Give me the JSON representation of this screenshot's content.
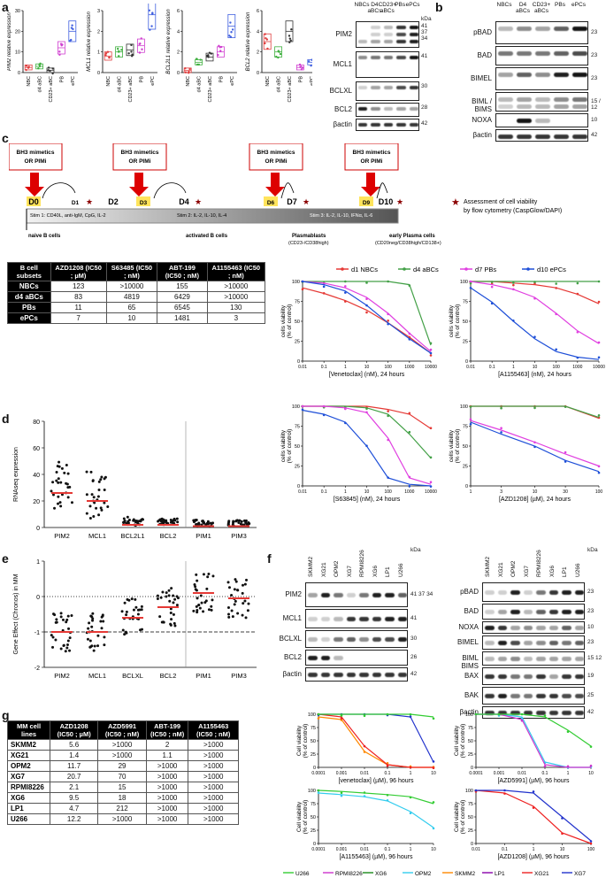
{
  "panels": {
    "a": "a",
    "b": "b",
    "c": "c",
    "d": "d",
    "e": "e",
    "f": "f",
    "g": "g"
  },
  "panel_a": {
    "mini_charts": [
      {
        "ylabel": "PIM2 relative expression",
        "ymax": "30",
        "ticks": [
          "0",
          "10",
          "20",
          "30"
        ],
        "cats": [
          "NBC",
          "d4 aBC",
          "CD23+ aBC",
          "PB",
          "ePC"
        ],
        "means": [
          2.5,
          3,
          1,
          12,
          20
        ],
        "color": [
          "#e04040",
          "#40b040",
          "#333",
          "#d040d0",
          "#4060e0"
        ]
      },
      {
        "ylabel": "MCL1 relative expression",
        "ymax": "3",
        "ticks": [
          "0",
          "1",
          "2",
          "3"
        ],
        "cats": [
          "NBC",
          "d4 aBC",
          "CD23+ aBC",
          "PB",
          "ePC"
        ],
        "means": [
          0.8,
          1,
          1.1,
          1.3,
          2.8
        ],
        "color": [
          "#e04040",
          "#40b040",
          "#333",
          "#d040d0",
          "#4060e0"
        ]
      },
      {
        "ylabel": "BCL2L1 relative expression",
        "ymax": "6",
        "ticks": [
          "0",
          "2",
          "4",
          "6"
        ],
        "cats": [
          "NBC",
          "d4 aBC",
          "CD23+ aBC",
          "PB",
          "ePC"
        ],
        "means": [
          0.2,
          1,
          1.5,
          2,
          4.5
        ],
        "color": [
          "#e04040",
          "#40b040",
          "#333",
          "#d040d0",
          "#4060e0"
        ]
      },
      {
        "ylabel": "BCL2 relative expression",
        "ymax": "6",
        "ticks": [
          "0",
          "2",
          "4",
          "6"
        ],
        "cats": [
          "NBC",
          "d4 aBC",
          "CD23+ aBC",
          "PB",
          "ePC"
        ],
        "means": [
          3,
          2,
          4,
          0.5,
          1
        ],
        "color": [
          "#e04040",
          "#40b040",
          "#333",
          "#d040d0",
          "#4060e0"
        ]
      }
    ],
    "blot_cols": [
      "NBCs",
      "D4 aBCs",
      "CD23+ aBCs",
      "PBs",
      "ePCs"
    ],
    "blot_rows": [
      {
        "label": "PIM2",
        "kda": [
          "41",
          "37",
          "34"
        ]
      },
      {
        "label": "MCL1",
        "kda": [
          "41"
        ]
      },
      {
        "label": "BCLXL",
        "kda": [
          "30"
        ]
      },
      {
        "label": "BCL2",
        "kda": [
          "28"
        ]
      },
      {
        "label": "βactin",
        "kda": [
          "42"
        ]
      }
    ],
    "kda_title": "kDa"
  },
  "panel_b": {
    "blot_cols": [
      "NBCs",
      "D4 aBCs",
      "CD23+ aBCs",
      "PBs",
      "ePCs"
    ],
    "rows": [
      {
        "label": "pBAD",
        "kda": "23"
      },
      {
        "label": "BAD",
        "kda": "23"
      },
      {
        "label": "BIMEL",
        "kda": "23"
      },
      {
        "label": "BIML / BIMS",
        "kda": "15 / 12"
      },
      {
        "label": "NOXA",
        "kda": "10"
      },
      {
        "label": "βactin",
        "kda": "42"
      }
    ]
  },
  "panel_c": {
    "boxes": [
      "BH3 mimetics OR PIMi",
      "BH3 mimetics OR PIMi",
      "BH3 mimetics OR PIMi",
      "BH3 mimetics OR PIMi"
    ],
    "days": [
      "D0",
      "D1",
      "D2",
      "D3",
      "D4",
      "D6",
      "D7",
      "D9",
      "D10"
    ],
    "stim1": "Stim 1: CD40L, anti-IgM, CpG, IL-2",
    "stim2": "Stim 2: IL-2, IL-10, IL-4",
    "stim3": "Stim 3: IL-2, IL-10, IFNα, IL-6",
    "stage_labels": [
      "naive B cells",
      "activated B cells",
      "Plasmablasts",
      "early Plasma cells"
    ],
    "stage_markers": [
      "(CD23-/CD38high)",
      "(CD20neg/CD38high/CD138+)"
    ],
    "legend": "Assessment of cell viability by flow cytometry (CaspGlow/DAPI)",
    "table": {
      "header": [
        "B cell subsets",
        "AZD1208 (IC50 ; µM)",
        "S63485 (IC50 ; nM)",
        "ABT-199 (IC50 ; nM)",
        "A1155463 (IC50 ; nM)"
      ],
      "rows": [
        [
          "NBCs",
          "123",
          ">10000",
          "155",
          ">10000"
        ],
        [
          "d4 aBCs",
          "83",
          "4819",
          "6429",
          ">10000"
        ],
        [
          "PBs",
          "11",
          "65",
          "6545",
          "130"
        ],
        [
          "ePCs",
          "7",
          "10",
          "1481",
          "3"
        ]
      ]
    },
    "legend_series": [
      "d1 NBCs",
      "d4 aBCs",
      "d7 PBs",
      "d10 ePCs"
    ],
    "legend_colors": [
      "#e53935",
      "#43a047",
      "#e040e0",
      "#1e4fd8"
    ],
    "curve_ylabel": "cells viability (% of control)",
    "curves_xlabels": [
      "[Venetoclax] (nM), 24 hours",
      "[A1155463] (nM), 24 hours",
      "[S63845] (nM), 24 hours",
      "[AZD1208] (µM), 24 hours"
    ]
  },
  "panel_d": {
    "ylabel": "RNAseq expression",
    "yticks": [
      "0",
      "20",
      "40",
      "60",
      "80"
    ],
    "cats": [
      "PIM2",
      "MCL1",
      "BCL2L1",
      "BCL2",
      "PIM1",
      "PIM3"
    ],
    "medians": [
      26,
      20,
      2,
      2,
      1,
      1
    ]
  },
  "panel_e": {
    "ylabel": "Gene Effect (Chronos) in MM",
    "yticks": [
      "1",
      "0",
      "-1",
      "-2"
    ],
    "cats": [
      "PIM2",
      "MCL1",
      "BCLXL",
      "BCL2",
      "PIM1",
      "PIM3"
    ],
    "medians": [
      -1.0,
      -1.0,
      -0.6,
      -0.3,
      0.1,
      -0.05
    ]
  },
  "panel_f": {
    "cols": [
      "SKMM2",
      "XG21",
      "OPM2",
      "XG7",
      "RPMI8226",
      "XG6",
      "LP1",
      "U266"
    ],
    "left_rows": [
      {
        "label": "PIM2",
        "kda": "41 37 34"
      },
      {
        "label": "MCL1",
        "kda": "41"
      },
      {
        "label": "BCLXL",
        "kda": "30"
      },
      {
        "label": "BCL2",
        "kda": "26"
      },
      {
        "label": "βactin",
        "kda": "42"
      }
    ],
    "right_rows": [
      {
        "label": "pBAD",
        "kda": "23"
      },
      {
        "label": "BAD",
        "kda": "23"
      },
      {
        "label": "NOXA",
        "kda": "10"
      },
      {
        "label": "BIMEL",
        "kda": "23"
      },
      {
        "label": "BIML BIMS",
        "kda": "15 12"
      },
      {
        "label": "BAX",
        "kda": "19"
      },
      {
        "label": "BAK",
        "kda": "25"
      },
      {
        "label": "βactin",
        "kda": "42"
      }
    ],
    "kda": "kDa"
  },
  "panel_g": {
    "table": {
      "header": [
        "MM cell lines",
        "AZD1208 (IC50 ; µM)",
        "AZD5991 (IC50 ; nM)",
        "ABT-199 (IC50 ; nM)",
        "A1155463 (IC50 ; nM)"
      ],
      "rows": [
        [
          "SKMM2",
          "5.6",
          ">1000",
          "2",
          ">1000"
        ],
        [
          "XG21",
          "1.4",
          ">1000",
          "1.1",
          ">1000"
        ],
        [
          "OPM2",
          "11.7",
          "29",
          ">1000",
          ">1000"
        ],
        [
          "XG7",
          "20.7",
          "70",
          ">1000",
          ">1000"
        ],
        [
          "RPMI8226",
          "2.1",
          "15",
          ">1000",
          ">1000"
        ],
        [
          "XG6",
          "9.5",
          "18",
          ">1000",
          ">1000"
        ],
        [
          "LP1",
          "4.7",
          "212",
          ">1000",
          ">1000"
        ],
        [
          "U266",
          "12.2",
          ">1000",
          ">1000",
          ">1000"
        ]
      ]
    },
    "curve_ylabel": "Cell viability (% of control)",
    "curves_xlabels": [
      "[venetoclax] (µM), 96 hours",
      "[AZD5991] (µM), 96 hours",
      "[A1155463] (µM), 96 hours",
      "[AZD1208] (µM), 96 hours"
    ],
    "legend": [
      "U266",
      "RPMI8226",
      "XG6",
      "OPM2",
      "SKMM2",
      "LP1",
      "XG21",
      "XG7"
    ],
    "legend_colors": [
      "#33cc33",
      "#cc33cc",
      "#1a8a1a",
      "#33ccee",
      "#ff8800",
      "#8800aa",
      "#ee2222",
      "#2233cc"
    ]
  },
  "chart_data": [
    {
      "type": "line",
      "title": "Venetoclax 24h",
      "xlabel": "[Venetoclax] (nM), 24 hours",
      "ylabel": "cells viability (% of control)",
      "x": [
        0.01,
        0.1,
        1,
        10,
        100,
        1000,
        10000
      ],
      "ylim": [
        0,
        100
      ],
      "series": [
        {
          "name": "d1 NBCs",
          "values": [
            92,
            85,
            76,
            64,
            48,
            30,
            10
          ]
        },
        {
          "name": "d4 aBCs",
          "values": [
            100,
            100,
            100,
            100,
            100,
            96,
            20
          ]
        },
        {
          "name": "d7 PBs",
          "values": [
            100,
            98,
            92,
            80,
            60,
            35,
            12
          ]
        },
        {
          "name": "d10 ePCs",
          "values": [
            100,
            96,
            88,
            70,
            48,
            28,
            10
          ]
        }
      ]
    },
    {
      "type": "line",
      "title": "A1155463 24h",
      "xlabel": "[A1155463] (nM), 24 hours",
      "ylabel": "cells viability (% of control)",
      "x": [
        0.01,
        0.1,
        1,
        10,
        100,
        1000,
        10000
      ],
      "ylim": [
        0,
        100
      ],
      "series": [
        {
          "name": "d1 NBCs",
          "values": [
            100,
            100,
            98,
            96,
            92,
            84,
            72
          ]
        },
        {
          "name": "d4 aBCs",
          "values": [
            100,
            100,
            100,
            100,
            100,
            100,
            100
          ]
        },
        {
          "name": "d7 PBs",
          "values": [
            100,
            96,
            90,
            80,
            60,
            38,
            22
          ]
        },
        {
          "name": "d10 ePCs",
          "values": [
            92,
            74,
            50,
            28,
            12,
            5,
            2
          ]
        }
      ]
    },
    {
      "type": "line",
      "title": "S63845 24h",
      "xlabel": "[S63845] (nM), 24 hours",
      "ylabel": "cells viability (% of control)",
      "x": [
        0.01,
        0.1,
        1,
        10,
        100,
        1000,
        10000
      ],
      "ylim": [
        0,
        100
      ],
      "series": [
        {
          "name": "d1 NBCs",
          "values": [
            100,
            100,
            100,
            100,
            96,
            90,
            72
          ]
        },
        {
          "name": "d4 aBCs",
          "values": [
            100,
            100,
            100,
            98,
            90,
            65,
            35
          ]
        },
        {
          "name": "d7 PBs",
          "values": [
            100,
            100,
            98,
            92,
            60,
            10,
            2
          ]
        },
        {
          "name": "d10 ePCs",
          "values": [
            95,
            90,
            80,
            50,
            10,
            2,
            0
          ]
        }
      ]
    },
    {
      "type": "line",
      "title": "AZD1208 24h",
      "xlabel": "[AZD1208] (µM), 24 hours",
      "ylabel": "cells viability (% of control)",
      "x": [
        1,
        3,
        10,
        30,
        100
      ],
      "ylim": [
        0,
        100
      ],
      "series": [
        {
          "name": "d1 NBCs",
          "values": [
            100,
            100,
            100,
            100,
            85
          ]
        },
        {
          "name": "d4 aBCs",
          "values": [
            100,
            100,
            100,
            100,
            86
          ]
        },
        {
          "name": "d7 PBs",
          "values": [
            82,
            70,
            55,
            40,
            25
          ]
        },
        {
          "name": "d10 ePCs",
          "values": [
            80,
            65,
            50,
            32,
            18
          ]
        }
      ]
    },
    {
      "type": "line",
      "title": "venetoclax 96h",
      "xlabel": "[venetoclax] (µM), 96 hours",
      "ylabel": "Cell viability (% of control)",
      "x": [
        0.0001,
        0.001,
        0.01,
        0.1,
        1,
        10
      ],
      "ylim": [
        0,
        100
      ],
      "series": [
        {
          "name": "SKMM2",
          "values": [
            95,
            90,
            30,
            5,
            0,
            0
          ]
        },
        {
          "name": "XG21",
          "values": [
            100,
            95,
            40,
            5,
            0,
            0
          ]
        },
        {
          "name": "XG7",
          "values": [
            100,
            100,
            100,
            100,
            95,
            10
          ]
        },
        {
          "name": "U266",
          "values": [
            100,
            100,
            100,
            100,
            100,
            95
          ]
        }
      ]
    },
    {
      "type": "line",
      "title": "AZD5991 96h",
      "xlabel": "[AZD5991] (µM), 96 hours",
      "ylabel": "Cell viability (% of control)",
      "x": [
        0.0001,
        0.001,
        0.01,
        0.1,
        1,
        10
      ],
      "ylim": [
        0,
        100
      ],
      "series": [
        {
          "name": "OPM2",
          "values": [
            100,
            100,
            95,
            10,
            0,
            0
          ]
        },
        {
          "name": "RPMI8226",
          "values": [
            100,
            100,
            90,
            5,
            0,
            0
          ]
        },
        {
          "name": "U266",
          "values": [
            100,
            100,
            100,
            95,
            70,
            40
          ]
        }
      ]
    },
    {
      "type": "line",
      "title": "A1155463 96h",
      "xlabel": "[A1155463] (µM), 96 hours",
      "ylabel": "Cell viability (% of control)",
      "x": [
        0.0001,
        0.001,
        0.01,
        0.1,
        1,
        10
      ],
      "ylim": [
        0,
        100
      ],
      "series": [
        {
          "name": "U266",
          "values": [
            100,
            98,
            95,
            92,
            88,
            75
          ]
        },
        {
          "name": "OPM2",
          "values": [
            95,
            92,
            88,
            80,
            60,
            30
          ]
        }
      ]
    },
    {
      "type": "line",
      "title": "AZD1208 96h",
      "xlabel": "[AZD1208] (µM), 96 hours",
      "ylabel": "Cell viability (% of control)",
      "x": [
        0.01,
        0.1,
        1,
        10,
        100
      ],
      "ylim": [
        0,
        100
      ],
      "series": [
        {
          "name": "XG21",
          "values": [
            100,
            95,
            70,
            20,
            0
          ]
        },
        {
          "name": "XG7",
          "values": [
            100,
            100,
            95,
            50,
            5
          ]
        }
      ]
    }
  ]
}
